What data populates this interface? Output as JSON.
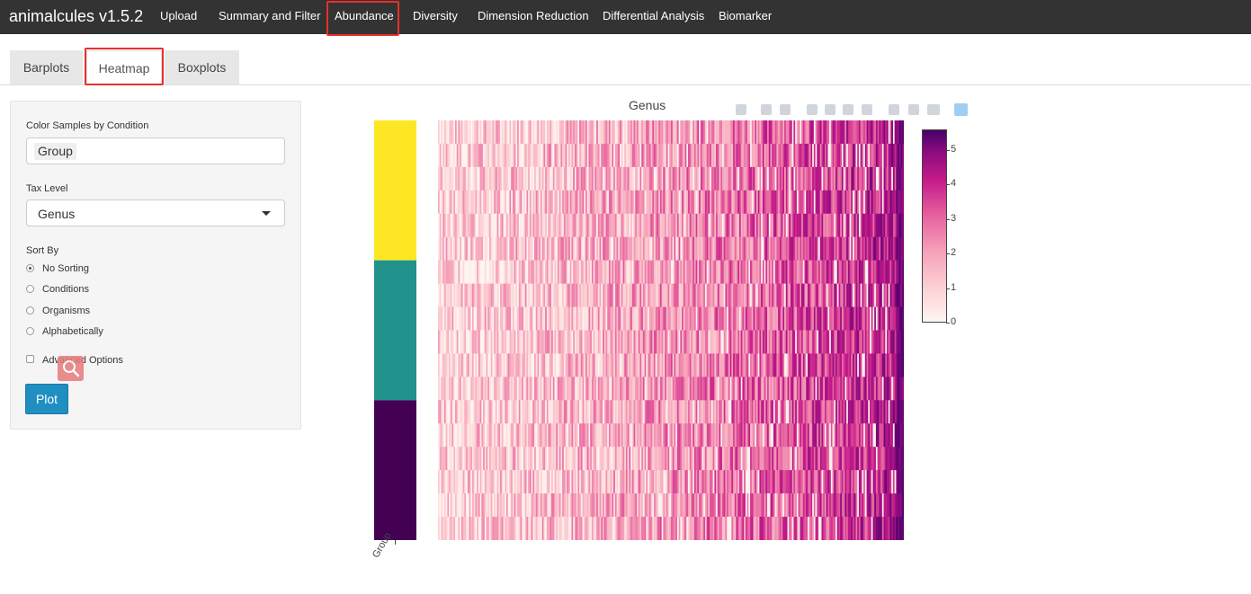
{
  "navbar": {
    "brand": "animalcules v1.5.2",
    "items": [
      "Upload",
      "Summary and Filter",
      "Abundance",
      "Diversity",
      "Dimension Reduction",
      "Differential Analysis",
      "Biomarker"
    ],
    "active": "Abundance"
  },
  "tabs": {
    "items": [
      "Barplots",
      "Heatmap",
      "Boxplots"
    ],
    "active": "Heatmap"
  },
  "sidebar": {
    "color_label": "Color Samples by Condition",
    "color_value": "Group",
    "tax_label": "Tax Level",
    "tax_value": "Genus",
    "sort_label": "Sort By",
    "sort_options": [
      "No Sorting",
      "Conditions",
      "Organisms",
      "Alphabetically"
    ],
    "sort_selected": "No Sorting",
    "advanced_label": "Advanced Options",
    "advanced_checked": false,
    "plot_button": "Plot"
  },
  "plot": {
    "title": "Genus",
    "x_axis_label": "Group",
    "colorbar_ticks": [
      "0",
      "1",
      "2",
      "3",
      "4",
      "5"
    ],
    "colorbar_range": [
      0,
      5.6
    ],
    "group_colors": [
      "#fde725",
      "#21918c",
      "#440154"
    ],
    "colorscale": [
      "#fff5f0",
      "#fcd0d3",
      "#f6a3bb",
      "#e7639f",
      "#c51b8a",
      "#8e0c7f",
      "#49006a"
    ]
  },
  "chart_data": {
    "type": "heatmap",
    "title": "Genus",
    "rows": 18,
    "columns": 300,
    "value_range": [
      0,
      5.6
    ],
    "annotation_row_groups": [
      6,
      6,
      6
    ]
  },
  "modebar_icons": [
    "camera-icon",
    "zoom-icon",
    "pan-icon",
    "zoom-in-icon",
    "zoom-out-icon",
    "autoscale-icon",
    "reset-axes-icon",
    "spike-lines-icon",
    "hover-closest-icon",
    "hover-compare-icon",
    "plotly-logo-icon"
  ]
}
